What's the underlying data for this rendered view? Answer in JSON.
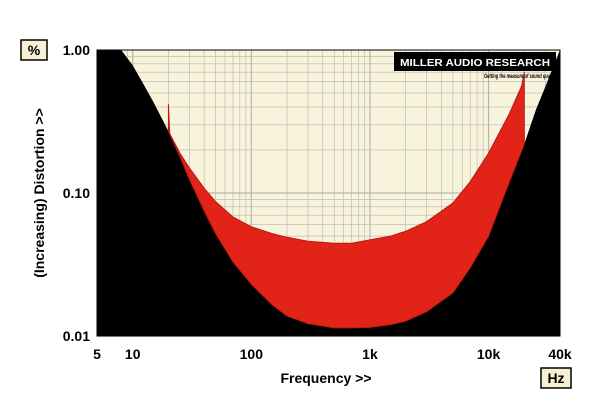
{
  "chart_data": {
    "type": "area",
    "title": "",
    "xlabel": "Frequency >>",
    "ylabel": "(Increasing) Distortion >>",
    "x_unit": "Hz",
    "y_unit": "%",
    "x_scale": "log",
    "y_scale": "log",
    "xlim": [
      5,
      40000
    ],
    "ylim": [
      0.01,
      1.0
    ],
    "x_ticks": [
      {
        "value": 5,
        "label": "5"
      },
      {
        "value": 10,
        "label": "10"
      },
      {
        "value": 100,
        "label": "100"
      },
      {
        "value": 1000,
        "label": "1k"
      },
      {
        "value": 10000,
        "label": "10k"
      },
      {
        "value": 40000,
        "label": "40k"
      }
    ],
    "y_ticks": [
      {
        "value": 0.01,
        "label": "0.01"
      },
      {
        "value": 0.1,
        "label": "0.10"
      },
      {
        "value": 1.0,
        "label": "1.00"
      }
    ],
    "grid": true,
    "logo": {
      "name": "MILLER AUDIO RESEARCH",
      "tagline": "Getting the measure of sound quality"
    },
    "colors": {
      "plot_bg": "#f8f3dc",
      "mask": "#000000",
      "band": "#e22418",
      "band_edge": "#b81a12",
      "grid": "#b9b6a6"
    },
    "series": [
      {
        "role": "background-mask",
        "x": [
          5,
          6,
          8,
          10,
          12,
          15,
          20,
          25,
          30,
          40,
          50,
          70,
          100,
          150,
          200,
          300,
          500,
          700,
          1000,
          1500,
          2000,
          3000,
          5000,
          7000,
          10000,
          15000,
          20000,
          25000,
          30000,
          40000
        ],
        "y": [
          1.0,
          1.0,
          1.0,
          0.78,
          0.6,
          0.43,
          0.27,
          0.18,
          0.125,
          0.075,
          0.052,
          0.033,
          0.023,
          0.0165,
          0.0138,
          0.0122,
          0.0114,
          0.0114,
          0.0115,
          0.012,
          0.0127,
          0.0148,
          0.02,
          0.03,
          0.05,
          0.12,
          0.22,
          0.38,
          0.55,
          1.0
        ]
      },
      {
        "role": "band-upper",
        "x": [
          20,
          20.5,
          25,
          30,
          40,
          50,
          70,
          100,
          150,
          200,
          300,
          500,
          700,
          1000,
          1500,
          2000,
          3000,
          5000,
          7000,
          10000,
          15000,
          19000,
          20000
        ],
        "y": [
          0.42,
          0.26,
          0.19,
          0.15,
          0.108,
          0.087,
          0.068,
          0.058,
          0.052,
          0.049,
          0.046,
          0.0445,
          0.0445,
          0.047,
          0.05,
          0.054,
          0.063,
          0.085,
          0.12,
          0.19,
          0.36,
          0.56,
          0.7
        ]
      },
      {
        "role": "band-lower",
        "x": [
          20,
          25,
          30,
          40,
          50,
          70,
          100,
          150,
          200,
          300,
          500,
          700,
          1000,
          1500,
          2000,
          3000,
          5000,
          7000,
          10000,
          15000,
          20000
        ],
        "y": [
          0.27,
          0.18,
          0.125,
          0.075,
          0.052,
          0.033,
          0.023,
          0.0165,
          0.0138,
          0.0122,
          0.0114,
          0.0114,
          0.0115,
          0.012,
          0.0127,
          0.0148,
          0.02,
          0.03,
          0.05,
          0.12,
          0.22
        ]
      }
    ]
  }
}
